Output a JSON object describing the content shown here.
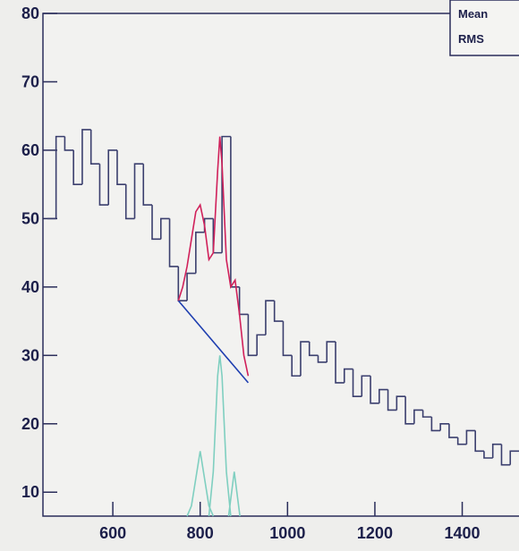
{
  "chart_data": {
    "type": "histogram",
    "color": "#3b3f6e",
    "xlim": [
      440,
      1530
    ],
    "ylim": [
      6.5,
      80
    ],
    "xticks": [
      600,
      800,
      1000,
      1200,
      1400
    ],
    "yticks": [
      10,
      20,
      30,
      40,
      50,
      60,
      70,
      80
    ],
    "bins": [
      450,
      470,
      490,
      510,
      530,
      550,
      570,
      590,
      610,
      630,
      650,
      670,
      690,
      710,
      730,
      750,
      770,
      790,
      810,
      830,
      850,
      870,
      890,
      910,
      930,
      950,
      970,
      990,
      1010,
      1030,
      1050,
      1070,
      1090,
      1110,
      1130,
      1150,
      1170,
      1190,
      1210,
      1230,
      1250,
      1270,
      1290,
      1310,
      1330,
      1350,
      1370,
      1390,
      1410,
      1430,
      1450,
      1470,
      1490,
      1510,
      1530
    ],
    "values": [
      50,
      62,
      60,
      55,
      63,
      58,
      52,
      60,
      55,
      50,
      58,
      52,
      47,
      50,
      43,
      38,
      42,
      48,
      50,
      45,
      62,
      40,
      36,
      30,
      33,
      38,
      35,
      30,
      27,
      32,
      30,
      29,
      32,
      26,
      28,
      24,
      27,
      23,
      25,
      22,
      24,
      20,
      22,
      21,
      19,
      20,
      18,
      17,
      19,
      16,
      15,
      17,
      14,
      16
    ],
    "stats_labels": [
      "Mean",
      "RMS"
    ],
    "curves": [
      {
        "color": "#7fcfc0",
        "x": [
          770,
          780,
          790,
          800,
          810,
          820,
          830
        ],
        "values": [
          6.5,
          8,
          12,
          16,
          12,
          8,
          6.5
        ]
      },
      {
        "color": "#7fcfc0",
        "x": [
          820,
          830,
          840,
          845,
          850,
          860,
          870
        ],
        "values": [
          6.5,
          13,
          27,
          30,
          27,
          13,
          6.5
        ]
      },
      {
        "color": "#7fcfc0",
        "x": [
          865,
          872,
          878,
          884,
          891
        ],
        "values": [
          6.5,
          10,
          13,
          10,
          6.5
        ]
      },
      {
        "color": "#1f3fb0",
        "x": [
          750,
          910
        ],
        "values": [
          38,
          26
        ]
      },
      {
        "color": "#d0205a",
        "x": [
          750,
          760,
          770,
          780,
          790,
          800,
          810,
          820,
          830,
          840,
          845,
          850,
          860,
          870,
          880,
          890,
          900,
          910
        ],
        "values": [
          38,
          40,
          43,
          47,
          51,
          52,
          49,
          44,
          45,
          57,
          62,
          58,
          44,
          40,
          41,
          36,
          30,
          27
        ]
      }
    ]
  }
}
